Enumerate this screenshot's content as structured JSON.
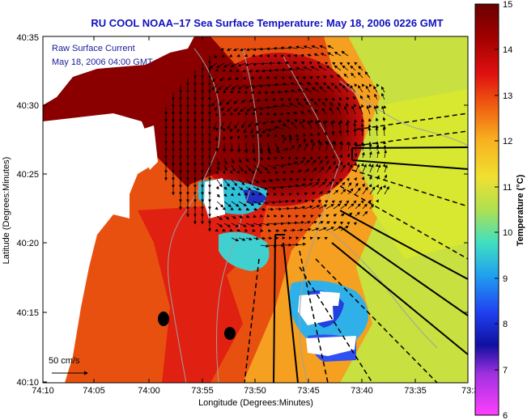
{
  "title": "RU COOL  NOAA–17  Sea Surface Temperature:  May 18, 2006 0226 GMT",
  "annotations": {
    "line1": "Raw Surface Current",
    "line2": "May 18, 2006 04:00 GMT",
    "scale_label": "50 cm/s"
  },
  "axes": {
    "xlabel": "Longitude (Degrees:Minutes)",
    "ylabel": "Latitude (Degrees:Minutes)",
    "x_ticks": [
      "74:10",
      "74:05",
      "74:00",
      "73:55",
      "73:50",
      "73:45",
      "73:40",
      "73:35",
      "73:3"
    ],
    "y_ticks": [
      "40:35",
      "40:30",
      "40:25",
      "40:20",
      "40:15",
      "40:10"
    ]
  },
  "colorbar": {
    "label": "Temperature (°C)",
    "ticks": [
      "15",
      "14",
      "13",
      "12",
      "11",
      "10",
      "9",
      "8",
      "7",
      "6"
    ],
    "range": [
      6,
      15
    ]
  },
  "colors": {
    "title": "#1010c0",
    "annotation": "#1a1a9a",
    "land": "#ffffff",
    "hot": "#7a0000",
    "warm": "#e03010",
    "mid": "#f5a020",
    "cool": "#c8e040"
  }
}
